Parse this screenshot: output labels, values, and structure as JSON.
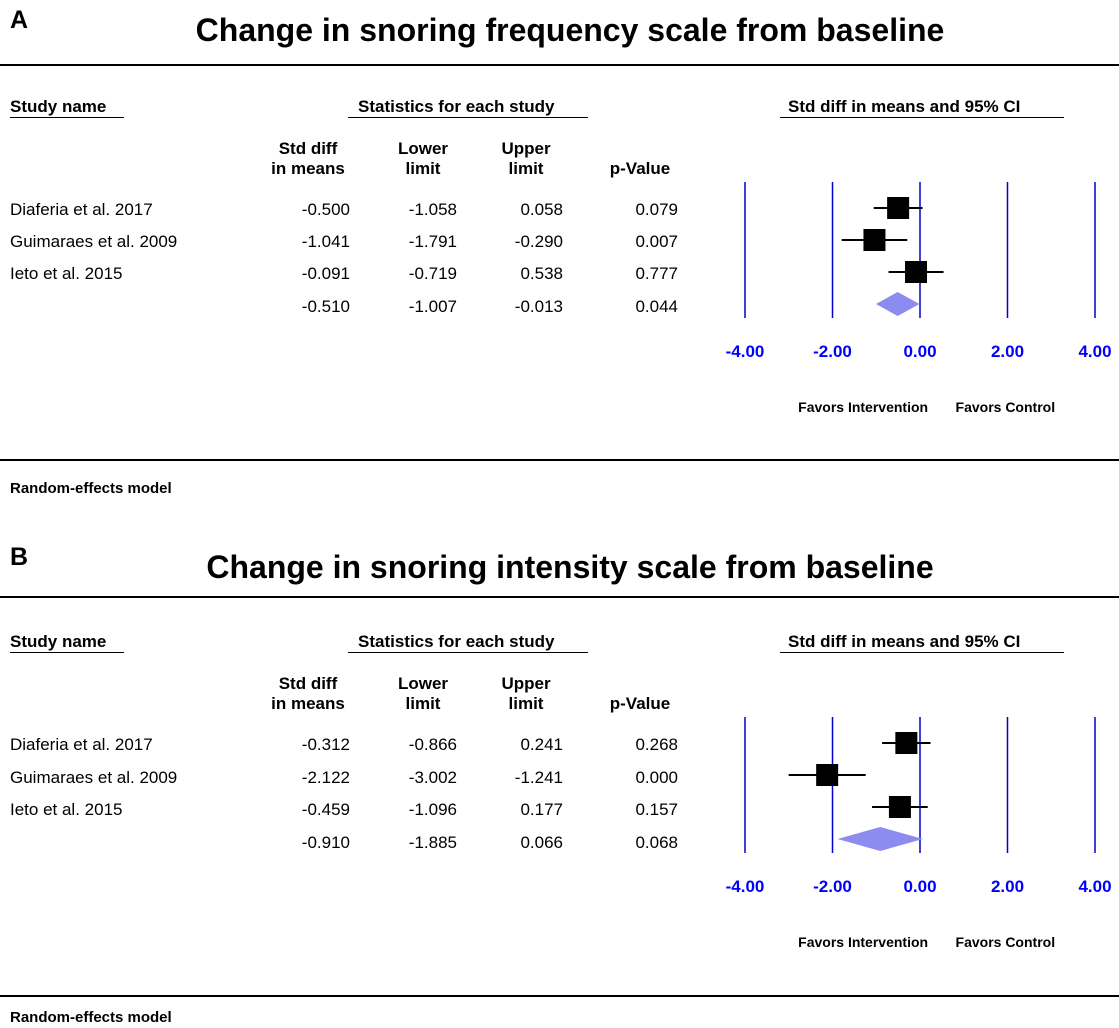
{
  "colors": {
    "axis_line": "#0000cc",
    "tick_label": "#0000ff",
    "diamond": "#8c8cf0",
    "marker": "#000000"
  },
  "headers": {
    "study_name": "Study name",
    "statistics": "Statistics for each study",
    "effect": "Std diff in means and 95% CI",
    "col_std_1": "Std diff",
    "col_std_2": "in means",
    "col_lower_1": "Lower",
    "col_lower_2": "limit",
    "col_upper_1": "Upper",
    "col_upper_2": "limit",
    "col_p": "p-Value"
  },
  "panels": [
    {
      "letter": "A",
      "title": "Change in snoring frequency scale from baseline",
      "rows": [
        {
          "study": "Diaferia et al. 2017",
          "std": "-0.500",
          "lower": "-1.058",
          "upper": "0.058",
          "p": "0.079"
        },
        {
          "study": "Guimaraes et al. 2009",
          "std": "-1.041",
          "lower": "-1.791",
          "upper": "-0.290",
          "p": "0.007"
        },
        {
          "study": "Ieto et al. 2015",
          "std": "-0.091",
          "lower": "-0.719",
          "upper": "0.538",
          "p": "0.777"
        },
        {
          "study": "",
          "std": "-0.510",
          "lower": "-1.007",
          "upper": "-0.013",
          "p": "0.044"
        }
      ],
      "favors_left": "Favors Intervention",
      "favors_right": "Favors Control",
      "footer": "Random-effects model"
    },
    {
      "letter": "B",
      "title": "Change in snoring intensity scale from baseline",
      "rows": [
        {
          "study": "Diaferia et al. 2017",
          "std": "-0.312",
          "lower": "-0.866",
          "upper": "0.241",
          "p": "0.268"
        },
        {
          "study": "Guimaraes et al. 2009",
          "std": "-2.122",
          "lower": "-3.002",
          "upper": "-1.241",
          "p": "0.000"
        },
        {
          "study": "Ieto et al. 2015",
          "std": "-0.459",
          "lower": "-1.096",
          "upper": "0.177",
          "p": "0.157"
        },
        {
          "study": "",
          "std": "-0.910",
          "lower": "-1.885",
          "upper": "0.066",
          "p": "0.068"
        }
      ],
      "favors_left": "Favors Intervention",
      "favors_right": "Favors Control",
      "footer": "Random-effects model"
    }
  ],
  "chart_data": [
    {
      "type": "forest",
      "title": "Change in snoring frequency scale from baseline",
      "xlim": [
        -4,
        4
      ],
      "xticks": [
        "-4.00",
        "-2.00",
        "0.00",
        "2.00",
        "4.00"
      ],
      "tick_values": [
        -4,
        -2,
        0,
        2,
        4
      ],
      "studies": [
        {
          "name": "Diaferia et al. 2017",
          "estimate": -0.5,
          "lower": -1.058,
          "upper": 0.058
        },
        {
          "name": "Guimaraes et al. 2009",
          "estimate": -1.041,
          "lower": -1.791,
          "upper": -0.29
        },
        {
          "name": "Ieto et al. 2015",
          "estimate": -0.091,
          "lower": -0.719,
          "upper": 0.538
        }
      ],
      "summary": {
        "estimate": -0.51,
        "lower": -1.007,
        "upper": -0.013
      }
    },
    {
      "type": "forest",
      "title": "Change in snoring intensity scale from baseline",
      "xlim": [
        -4,
        4
      ],
      "xticks": [
        "-4.00",
        "-2.00",
        "0.00",
        "2.00",
        "4.00"
      ],
      "tick_values": [
        -4,
        -2,
        0,
        2,
        4
      ],
      "studies": [
        {
          "name": "Diaferia et al. 2017",
          "estimate": -0.312,
          "lower": -0.866,
          "upper": 0.241
        },
        {
          "name": "Guimaraes et al. 2009",
          "estimate": -2.122,
          "lower": -3.002,
          "upper": -1.241
        },
        {
          "name": "Ieto et al. 2015",
          "estimate": -0.459,
          "lower": -1.096,
          "upper": 0.177
        }
      ],
      "summary": {
        "estimate": -0.91,
        "lower": -1.885,
        "upper": 0.066
      }
    }
  ]
}
